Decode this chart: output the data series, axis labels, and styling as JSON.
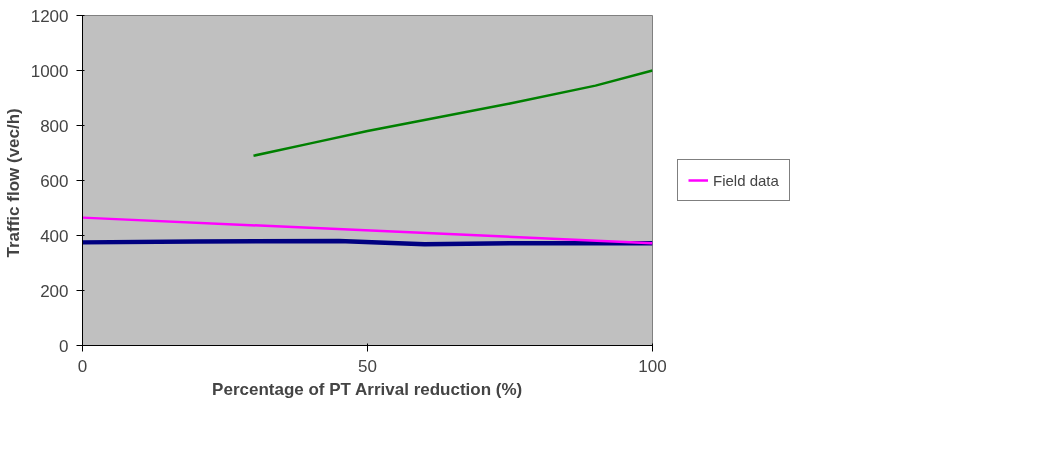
{
  "chart_data": {
    "type": "line",
    "xlabel": "Percentage of PT Arrival reduction (%)",
    "ylabel": "Traffic flow  (vec/h)",
    "xlim": [
      0,
      100
    ],
    "xticks": [
      0,
      50,
      100
    ],
    "ylim": [
      0,
      1200
    ],
    "yticks": [
      0,
      200,
      400,
      600,
      800,
      1000,
      1200
    ],
    "grid": false,
    "legend": "right",
    "marker": "none",
    "line_style": "solid",
    "series": [
      {
        "color": "#000080",
        "x": [
          0,
          20,
          45,
          60,
          75,
          100
        ],
        "values": [
          375,
          378,
          380,
          368,
          372,
          372
        ]
      },
      {
        "name": "Field data",
        "color": "#ff00ff",
        "x": [
          0,
          100
        ],
        "values": [
          465,
          372
        ]
      },
      {
        "color": "#008000",
        "x": [
          30,
          40,
          50,
          60,
          75,
          90,
          100
        ],
        "values": [
          690,
          735,
          780,
          820,
          880,
          945,
          1000
        ]
      }
    ]
  }
}
